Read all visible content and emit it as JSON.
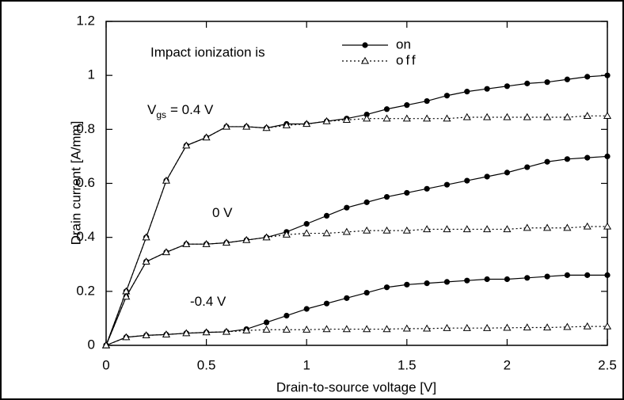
{
  "chart_data": {
    "type": "line",
    "xlabel": "Drain-to-source voltage [V]",
    "ylabel": "Drain current [A/mm]",
    "x": [
      0,
      0.1,
      0.2,
      0.3,
      0.4,
      0.5,
      0.6,
      0.7,
      0.8,
      0.9,
      1.0,
      1.1,
      1.2,
      1.3,
      1.4,
      1.5,
      1.6,
      1.7,
      1.8,
      1.9,
      2.0,
      2.1,
      2.2,
      2.3,
      2.4,
      2.5
    ],
    "xlim": [
      0,
      2.5
    ],
    "xticks": [
      0,
      0.5,
      1,
      1.5,
      2,
      2.5
    ],
    "ylim": [
      0,
      1.2
    ],
    "yticks": [
      0,
      0.2,
      0.4,
      0.6,
      0.8,
      1,
      1.2
    ],
    "legend": {
      "title": "Impact ionization is",
      "entries": [
        {
          "name": "on",
          "marker": "filled-circle",
          "dash": "solid",
          "color": "#000000"
        },
        {
          "name": "off",
          "marker": "open-triangle",
          "dash": "dotted",
          "color": "#000000"
        }
      ]
    },
    "annotations": [
      {
        "main": "V",
        "sub": "gs",
        "rest": "= 0.4 V"
      },
      {
        "main": "0 V"
      },
      {
        "main": "-0.4 V"
      }
    ],
    "series": [
      {
        "legend": 0,
        "values": [
          0,
          0.2,
          0.4,
          0.61,
          0.74,
          0.77,
          0.81,
          0.81,
          0.805,
          0.82,
          0.82,
          0.83,
          0.84,
          0.855,
          0.875,
          0.89,
          0.905,
          0.925,
          0.94,
          0.95,
          0.96,
          0.97,
          0.975,
          0.985,
          0.995,
          1.0
        ]
      },
      {
        "legend": 1,
        "values": [
          0,
          0.2,
          0.4,
          0.61,
          0.74,
          0.77,
          0.81,
          0.81,
          0.805,
          0.815,
          0.82,
          0.83,
          0.835,
          0.84,
          0.84,
          0.84,
          0.84,
          0.84,
          0.845,
          0.845,
          0.845,
          0.845,
          0.845,
          0.845,
          0.85,
          0.85
        ]
      },
      {
        "legend": 0,
        "values": [
          0,
          0.18,
          0.31,
          0.345,
          0.375,
          0.375,
          0.38,
          0.39,
          0.4,
          0.42,
          0.45,
          0.48,
          0.51,
          0.53,
          0.55,
          0.565,
          0.58,
          0.595,
          0.61,
          0.625,
          0.64,
          0.66,
          0.68,
          0.69,
          0.695,
          0.7
        ]
      },
      {
        "legend": 1,
        "values": [
          0,
          0.18,
          0.31,
          0.345,
          0.375,
          0.375,
          0.38,
          0.39,
          0.4,
          0.41,
          0.415,
          0.415,
          0.42,
          0.425,
          0.425,
          0.425,
          0.43,
          0.43,
          0.43,
          0.43,
          0.43,
          0.435,
          0.435,
          0.435,
          0.44,
          0.44
        ]
      },
      {
        "legend": 0,
        "values": [
          0,
          0.03,
          0.037,
          0.04,
          0.045,
          0.048,
          0.05,
          0.06,
          0.085,
          0.11,
          0.135,
          0.155,
          0.175,
          0.195,
          0.215,
          0.225,
          0.23,
          0.235,
          0.24,
          0.245,
          0.245,
          0.25,
          0.255,
          0.26,
          0.26,
          0.26
        ]
      },
      {
        "legend": 1,
        "values": [
          0,
          0.03,
          0.037,
          0.04,
          0.045,
          0.048,
          0.05,
          0.055,
          0.058,
          0.058,
          0.058,
          0.06,
          0.06,
          0.06,
          0.06,
          0.062,
          0.062,
          0.064,
          0.064,
          0.064,
          0.065,
          0.066,
          0.066,
          0.068,
          0.07,
          0.07
        ]
      }
    ]
  }
}
